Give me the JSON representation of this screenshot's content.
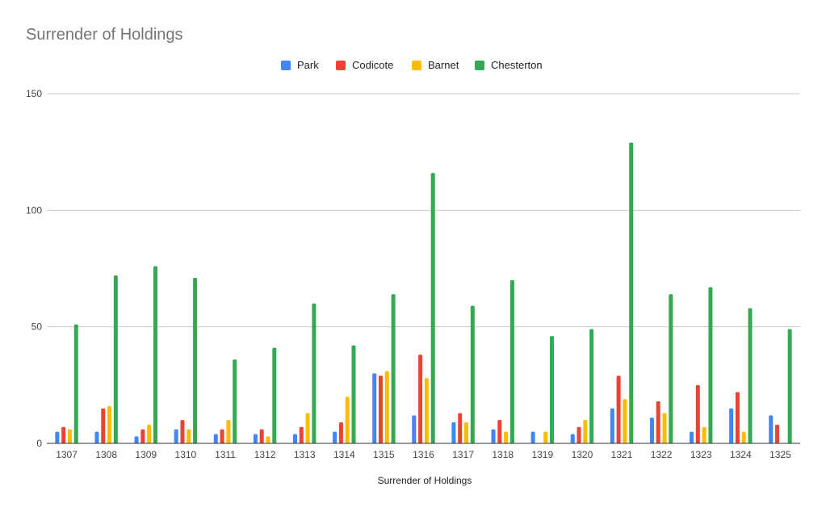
{
  "chart_data": {
    "type": "bar",
    "title": "Surrender of Holdings",
    "xlabel": "Surrender of Holdings",
    "ylabel": "",
    "ylim": [
      0,
      150
    ],
    "yticks": [
      "0",
      "50",
      "100",
      "150"
    ],
    "grid": true,
    "legend_position": "top",
    "categories": [
      "1307",
      "1308",
      "1309",
      "1310",
      "1311",
      "1312",
      "1313",
      "1314",
      "1315",
      "1316",
      "1317",
      "1318",
      "1319",
      "1320",
      "1321",
      "1322",
      "1323",
      "1324",
      "1325"
    ],
    "series": [
      {
        "name": "Park",
        "color": "#4285F4",
        "values": [
          5,
          5,
          3,
          6,
          4,
          4,
          4,
          5,
          30,
          12,
          9,
          6,
          5,
          4,
          15,
          11,
          5,
          15,
          12
        ]
      },
      {
        "name": "Codicote",
        "color": "#EA4335",
        "values": [
          7,
          15,
          6,
          10,
          6,
          6,
          7,
          9,
          29,
          38,
          13,
          10,
          0,
          7,
          29,
          18,
          25,
          22,
          8
        ]
      },
      {
        "name": "Barnet",
        "color": "#FBBC04",
        "values": [
          6,
          16,
          8,
          6,
          10,
          3,
          13,
          20,
          31,
          28,
          9,
          5,
          5,
          10,
          19,
          13,
          7,
          5,
          0
        ]
      },
      {
        "name": "Chesterton",
        "color": "#34A853",
        "values": [
          51,
          72,
          76,
          71,
          36,
          41,
          60,
          42,
          64,
          116,
          59,
          70,
          46,
          49,
          129,
          64,
          67,
          58,
          49
        ]
      }
    ]
  }
}
